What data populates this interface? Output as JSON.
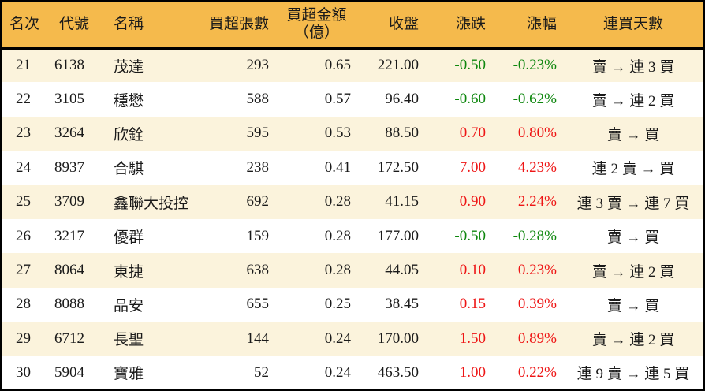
{
  "table": {
    "columns": [
      {
        "key": "rank",
        "label": "名次"
      },
      {
        "key": "code",
        "label": "代號"
      },
      {
        "key": "name",
        "label": "名稱"
      },
      {
        "key": "volume",
        "label": "買超張數"
      },
      {
        "key": "amount",
        "label": "買超金額\n（億）"
      },
      {
        "key": "close",
        "label": "收盤"
      },
      {
        "key": "change",
        "label": "漲跌"
      },
      {
        "key": "change_pct",
        "label": "漲幅"
      },
      {
        "key": "streak",
        "label": "連買天數"
      }
    ],
    "rows": [
      {
        "rank": "21",
        "code": "6138",
        "name": "茂達",
        "volume": "293",
        "amount": "0.65",
        "close": "221.00",
        "change": "-0.50",
        "change_pct": "-0.23%",
        "streak": "賣 → 連 3 買",
        "direction": "down"
      },
      {
        "rank": "22",
        "code": "3105",
        "name": "穩懋",
        "volume": "588",
        "amount": "0.57",
        "close": "96.40",
        "change": "-0.60",
        "change_pct": "-0.62%",
        "streak": "賣 → 連 2 買",
        "direction": "down"
      },
      {
        "rank": "23",
        "code": "3264",
        "name": "欣銓",
        "volume": "595",
        "amount": "0.53",
        "close": "88.50",
        "change": "0.70",
        "change_pct": "0.80%",
        "streak": "賣 → 買",
        "direction": "up"
      },
      {
        "rank": "24",
        "code": "8937",
        "name": "合騏",
        "volume": "238",
        "amount": "0.41",
        "close": "172.50",
        "change": "7.00",
        "change_pct": "4.23%",
        "streak": "連 2 賣 → 買",
        "direction": "up"
      },
      {
        "rank": "25",
        "code": "3709",
        "name": "鑫聯大投控",
        "volume": "692",
        "amount": "0.28",
        "close": "41.15",
        "change": "0.90",
        "change_pct": "2.24%",
        "streak": "連 3 賣 → 連 7 買",
        "direction": "up"
      },
      {
        "rank": "26",
        "code": "3217",
        "name": "優群",
        "volume": "159",
        "amount": "0.28",
        "close": "177.00",
        "change": "-0.50",
        "change_pct": "-0.28%",
        "streak": "賣 → 買",
        "direction": "down"
      },
      {
        "rank": "27",
        "code": "8064",
        "name": "東捷",
        "volume": "638",
        "amount": "0.28",
        "close": "44.05",
        "change": "0.10",
        "change_pct": "0.23%",
        "streak": "賣 → 連 2 買",
        "direction": "up"
      },
      {
        "rank": "28",
        "code": "8088",
        "name": "品安",
        "volume": "655",
        "amount": "0.25",
        "close": "38.45",
        "change": "0.15",
        "change_pct": "0.39%",
        "streak": "賣 → 買",
        "direction": "up"
      },
      {
        "rank": "29",
        "code": "6712",
        "name": "長聖",
        "volume": "144",
        "amount": "0.24",
        "close": "170.00",
        "change": "1.50",
        "change_pct": "0.89%",
        "streak": "賣 → 連 2 買",
        "direction": "up"
      },
      {
        "rank": "30",
        "code": "5904",
        "name": "寶雅",
        "volume": "52",
        "amount": "0.24",
        "close": "463.50",
        "change": "1.00",
        "change_pct": "0.22%",
        "streak": "連 9 賣 → 連 5 買",
        "direction": "up"
      }
    ]
  },
  "colors": {
    "header_bg": "#F5BA4C",
    "row_alt_bg": "#FBF3DC",
    "row_bg": "#FFFFFF",
    "border": "#000000",
    "text": "#1A1A1A",
    "up_red": "#EE1515",
    "down_green": "#0E870E"
  },
  "chart_data": {
    "type": "table",
    "title": "",
    "columns": [
      "名次",
      "代號",
      "名稱",
      "買超張數",
      "買超金額（億）",
      "收盤",
      "漲跌",
      "漲幅",
      "連買天數"
    ],
    "rows": [
      [
        "21",
        "6138",
        "茂達",
        "293",
        "0.65",
        "221.00",
        "-0.50",
        "-0.23%",
        "賣 → 連 3 買"
      ],
      [
        "22",
        "3105",
        "穩懋",
        "588",
        "0.57",
        "96.40",
        "-0.60",
        "-0.62%",
        "賣 → 連 2 買"
      ],
      [
        "23",
        "3264",
        "欣銓",
        "595",
        "0.53",
        "88.50",
        "0.70",
        "0.80%",
        "賣 → 買"
      ],
      [
        "24",
        "8937",
        "合騏",
        "238",
        "0.41",
        "172.50",
        "7.00",
        "4.23%",
        "連 2 賣 → 買"
      ],
      [
        "25",
        "3709",
        "鑫聯大投控",
        "692",
        "0.28",
        "41.15",
        "0.90",
        "2.24%",
        "連 3 賣 → 連 7 買"
      ],
      [
        "26",
        "3217",
        "優群",
        "159",
        "0.28",
        "177.00",
        "-0.50",
        "-0.28%",
        "賣 → 買"
      ],
      [
        "27",
        "8064",
        "東捷",
        "638",
        "0.28",
        "44.05",
        "0.10",
        "0.23%",
        "賣 → 連 2 買"
      ],
      [
        "28",
        "8088",
        "品安",
        "655",
        "0.25",
        "38.45",
        "0.15",
        "0.39%",
        "賣 → 買"
      ],
      [
        "29",
        "6712",
        "長聖",
        "144",
        "0.24",
        "170.00",
        "1.50",
        "0.89%",
        "賣 → 連 2 買"
      ],
      [
        "30",
        "5904",
        "寶雅",
        "52",
        "0.24",
        "463.50",
        "1.00",
        "0.22%",
        "連 9 賣 → 連 5 買"
      ]
    ],
    "notes": "Rows 21-30 of an institutional buy-over ranking table; change/change_pct shown red when positive, green when negative; rows alternate cream/white backgrounds."
  }
}
